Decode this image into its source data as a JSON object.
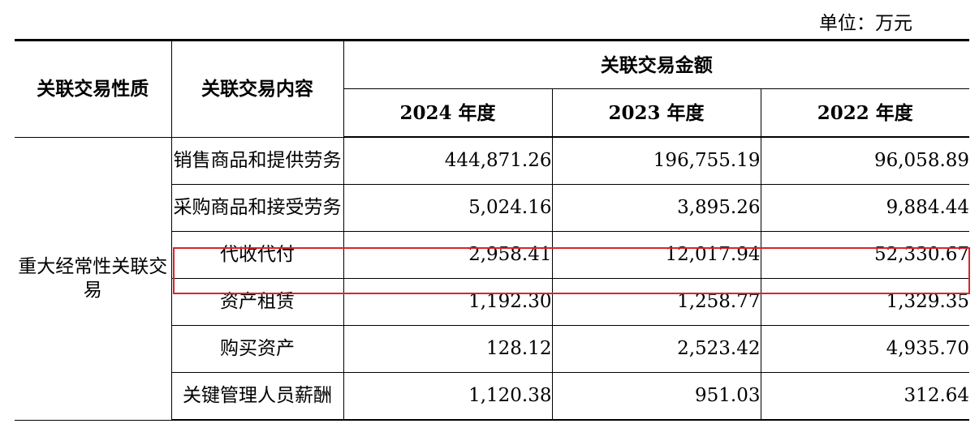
{
  "unit_label": "单位：万元",
  "header": {
    "nature": "关联交易性质",
    "content": "关联交易内容",
    "amount": "关联交易金额",
    "years": [
      "2024 年度",
      "2023 年度",
      "2022 年度"
    ]
  },
  "category": "重大经常性关联交易",
  "rows": [
    {
      "item": "销售商品和提供劳务",
      "values": [
        "444,871.26",
        "196,755.19",
        "96,058.89"
      ]
    },
    {
      "item": "采购商品和接受劳务",
      "values": [
        "5,024.16",
        "3,895.26",
        "9,884.44"
      ]
    },
    {
      "item": "代收代付",
      "values": [
        "2,958.41",
        "12,017.94",
        "52,330.67"
      ]
    },
    {
      "item": "资产租赁",
      "values": [
        "1,192.30",
        "1,258.77",
        "1,329.35"
      ]
    },
    {
      "item": "购买资产",
      "values": [
        "128.12",
        "2,523.42",
        "4,935.70"
      ]
    },
    {
      "item": "关键管理人员薪酬",
      "values": [
        "1,120.38",
        "951.03",
        "312.64"
      ]
    }
  ],
  "highlight_color": "#d9242e"
}
